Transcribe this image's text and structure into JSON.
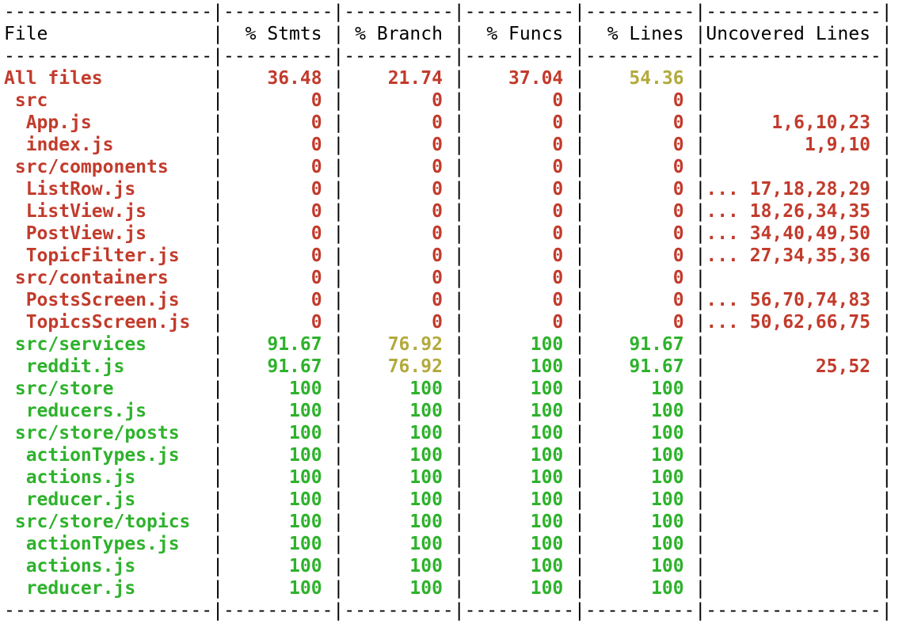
{
  "terminal": {
    "app": "jest-coverage-report",
    "colors": {
      "low": "#c23b2c",
      "medium": "#b3aa3d",
      "high": "#2eb22c",
      "text": "#000000",
      "background": "#ffffff"
    },
    "table": {
      "columns": [
        "File",
        "% Stmts",
        "% Branch",
        "% Funcs",
        "% Lines",
        "Uncovered Lines"
      ],
      "rows": [
        {
          "file": "All files",
          "indent": 0,
          "file_color": "low",
          "values": [
            "36.48",
            "21.74",
            "37.04",
            "54.36"
          ],
          "value_colors": [
            "low",
            "low",
            "low",
            "medium"
          ],
          "uncovered": "",
          "uncovered_color": "low"
        },
        {
          "file": "src",
          "indent": 1,
          "file_color": "low",
          "values": [
            "0",
            "0",
            "0",
            "0"
          ],
          "value_colors": [
            "low",
            "low",
            "low",
            "low"
          ],
          "uncovered": "",
          "uncovered_color": "low"
        },
        {
          "file": "App.js",
          "indent": 2,
          "file_color": "low",
          "values": [
            "0",
            "0",
            "0",
            "0"
          ],
          "value_colors": [
            "low",
            "low",
            "low",
            "low"
          ],
          "uncovered": "1,6,10,23",
          "uncovered_color": "low"
        },
        {
          "file": "index.js",
          "indent": 2,
          "file_color": "low",
          "values": [
            "0",
            "0",
            "0",
            "0"
          ],
          "value_colors": [
            "low",
            "low",
            "low",
            "low"
          ],
          "uncovered": "1,9,10",
          "uncovered_color": "low"
        },
        {
          "file": "src/components",
          "indent": 1,
          "file_color": "low",
          "values": [
            "0",
            "0",
            "0",
            "0"
          ],
          "value_colors": [
            "low",
            "low",
            "low",
            "low"
          ],
          "uncovered": "",
          "uncovered_color": "low"
        },
        {
          "file": "ListRow.js",
          "indent": 2,
          "file_color": "low",
          "values": [
            "0",
            "0",
            "0",
            "0"
          ],
          "value_colors": [
            "low",
            "low",
            "low",
            "low"
          ],
          "uncovered": "... 17,18,28,29",
          "uncovered_color": "low"
        },
        {
          "file": "ListView.js",
          "indent": 2,
          "file_color": "low",
          "values": [
            "0",
            "0",
            "0",
            "0"
          ],
          "value_colors": [
            "low",
            "low",
            "low",
            "low"
          ],
          "uncovered": "... 18,26,34,35",
          "uncovered_color": "low"
        },
        {
          "file": "PostView.js",
          "indent": 2,
          "file_color": "low",
          "values": [
            "0",
            "0",
            "0",
            "0"
          ],
          "value_colors": [
            "low",
            "low",
            "low",
            "low"
          ],
          "uncovered": "... 34,40,49,50",
          "uncovered_color": "low"
        },
        {
          "file": "TopicFilter.js",
          "indent": 2,
          "file_color": "low",
          "values": [
            "0",
            "0",
            "0",
            "0"
          ],
          "value_colors": [
            "low",
            "low",
            "low",
            "low"
          ],
          "uncovered": "... 27,34,35,36",
          "uncovered_color": "low"
        },
        {
          "file": "src/containers",
          "indent": 1,
          "file_color": "low",
          "values": [
            "0",
            "0",
            "0",
            "0"
          ],
          "value_colors": [
            "low",
            "low",
            "low",
            "low"
          ],
          "uncovered": "",
          "uncovered_color": "low"
        },
        {
          "file": "PostsScreen.js",
          "indent": 2,
          "file_color": "low",
          "values": [
            "0",
            "0",
            "0",
            "0"
          ],
          "value_colors": [
            "low",
            "low",
            "low",
            "low"
          ],
          "uncovered": "... 56,70,74,83",
          "uncovered_color": "low"
        },
        {
          "file": "TopicsScreen.js",
          "indent": 2,
          "file_color": "low",
          "values": [
            "0",
            "0",
            "0",
            "0"
          ],
          "value_colors": [
            "low",
            "low",
            "low",
            "low"
          ],
          "uncovered": "... 50,62,66,75",
          "uncovered_color": "low"
        },
        {
          "file": "src/services",
          "indent": 1,
          "file_color": "high",
          "values": [
            "91.67",
            "76.92",
            "100",
            "91.67"
          ],
          "value_colors": [
            "high",
            "medium",
            "high",
            "high"
          ],
          "uncovered": "",
          "uncovered_color": "low"
        },
        {
          "file": "reddit.js",
          "indent": 2,
          "file_color": "high",
          "values": [
            "91.67",
            "76.92",
            "100",
            "91.67"
          ],
          "value_colors": [
            "high",
            "medium",
            "high",
            "high"
          ],
          "uncovered": "25,52",
          "uncovered_color": "low"
        },
        {
          "file": "src/store",
          "indent": 1,
          "file_color": "high",
          "values": [
            "100",
            "100",
            "100",
            "100"
          ],
          "value_colors": [
            "high",
            "high",
            "high",
            "high"
          ],
          "uncovered": "",
          "uncovered_color": "low"
        },
        {
          "file": "reducers.js",
          "indent": 2,
          "file_color": "high",
          "values": [
            "100",
            "100",
            "100",
            "100"
          ],
          "value_colors": [
            "high",
            "high",
            "high",
            "high"
          ],
          "uncovered": "",
          "uncovered_color": "low"
        },
        {
          "file": "src/store/posts",
          "indent": 1,
          "file_color": "high",
          "values": [
            "100",
            "100",
            "100",
            "100"
          ],
          "value_colors": [
            "high",
            "high",
            "high",
            "high"
          ],
          "uncovered": "",
          "uncovered_color": "low"
        },
        {
          "file": "actionTypes.js",
          "indent": 2,
          "file_color": "high",
          "values": [
            "100",
            "100",
            "100",
            "100"
          ],
          "value_colors": [
            "high",
            "high",
            "high",
            "high"
          ],
          "uncovered": "",
          "uncovered_color": "low"
        },
        {
          "file": "actions.js",
          "indent": 2,
          "file_color": "high",
          "values": [
            "100",
            "100",
            "100",
            "100"
          ],
          "value_colors": [
            "high",
            "high",
            "high",
            "high"
          ],
          "uncovered": "",
          "uncovered_color": "low"
        },
        {
          "file": "reducer.js",
          "indent": 2,
          "file_color": "high",
          "values": [
            "100",
            "100",
            "100",
            "100"
          ],
          "value_colors": [
            "high",
            "high",
            "high",
            "high"
          ],
          "uncovered": "",
          "uncovered_color": "low"
        },
        {
          "file": "src/store/topics",
          "indent": 1,
          "file_color": "high",
          "values": [
            "100",
            "100",
            "100",
            "100"
          ],
          "value_colors": [
            "high",
            "high",
            "high",
            "high"
          ],
          "uncovered": "",
          "uncovered_color": "low"
        },
        {
          "file": "actionTypes.js",
          "indent": 2,
          "file_color": "high",
          "values": [
            "100",
            "100",
            "100",
            "100"
          ],
          "value_colors": [
            "high",
            "high",
            "high",
            "high"
          ],
          "uncovered": "",
          "uncovered_color": "low"
        },
        {
          "file": "actions.js",
          "indent": 2,
          "file_color": "high",
          "values": [
            "100",
            "100",
            "100",
            "100"
          ],
          "value_colors": [
            "high",
            "high",
            "high",
            "high"
          ],
          "uncovered": "",
          "uncovered_color": "low"
        },
        {
          "file": "reducer.js",
          "indent": 2,
          "file_color": "high",
          "values": [
            "100",
            "100",
            "100",
            "100"
          ],
          "value_colors": [
            "high",
            "high",
            "high",
            "high"
          ],
          "uncovered": "",
          "uncovered_color": "low"
        }
      ]
    }
  }
}
